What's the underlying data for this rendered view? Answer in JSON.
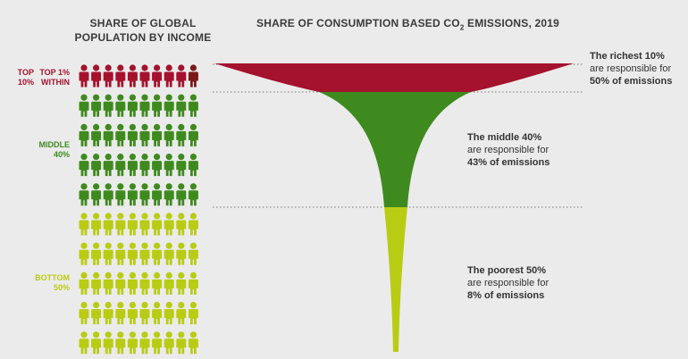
{
  "colors": {
    "top10": "#a5122e",
    "top1": "#7a1a1a",
    "middle": "#3f8a1e",
    "bottom": "#b9cc14",
    "text": "#3a3a3a"
  },
  "left_title_line1": "SHARE OF GLOBAL",
  "left_title_line2": "POPULATION BY INCOME",
  "right_title_prefix": "SHARE OF CONSUMPTION BASED CO",
  "right_title_sub": "2",
  "right_title_suffix": " EMISSIONS, 2019",
  "groups": {
    "top10_line1": "TOP",
    "top10_line2": "10%",
    "top1_line1": "TOP 1%",
    "top1_line2": "WITHIN",
    "middle_line1": "MIDDLE",
    "middle_line2": "40%",
    "bottom_line1": "BOTTOM",
    "bottom_line2": "50%"
  },
  "annotations": {
    "richest": {
      "bold": "The richest 10%",
      "line2": "are responsible for",
      "line3": "50% of emissions"
    },
    "middle": {
      "bold": "The middle 40%",
      "line2": "are responsible for",
      "line3": "43% of emissions"
    },
    "poorest": {
      "bold": "The poorest 50%",
      "line2": "are responsible for",
      "line3": "8% of emissions"
    }
  },
  "chart_data": {
    "type": "pictogram",
    "people_per_row": 10,
    "total_people": 100,
    "series": [
      {
        "name": "Top 1% within",
        "population_share": 1,
        "emissions_share": null
      },
      {
        "name": "Top 10%",
        "population_share": 10,
        "emissions_share": 50
      },
      {
        "name": "Middle 40%",
        "population_share": 40,
        "emissions_share": 43
      },
      {
        "name": "Bottom 50%",
        "population_share": 50,
        "emissions_share": 8
      }
    ]
  }
}
